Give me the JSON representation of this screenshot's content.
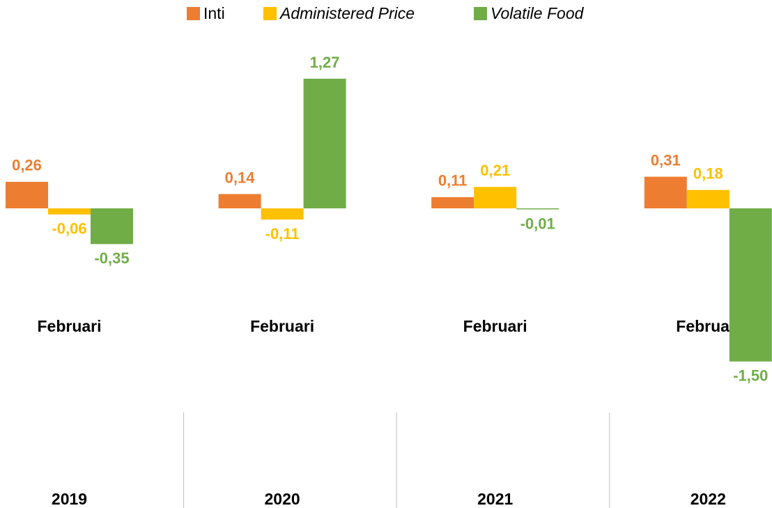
{
  "chart_data": {
    "type": "bar",
    "categories": [
      [
        "Februari",
        "2019"
      ],
      [
        "Februari",
        "2020"
      ],
      [
        "Februari",
        "2021"
      ],
      [
        "Februari",
        "2022"
      ]
    ],
    "series": [
      {
        "name": "Inti",
        "color": "#ED7D31",
        "values": [
          0.26,
          0.14,
          0.11,
          0.31
        ],
        "value_labels": [
          "0,26",
          "0,14",
          "0,11",
          "0,31"
        ]
      },
      {
        "name": "Administered Price",
        "color": "#FFC000",
        "values": [
          -0.06,
          -0.11,
          0.21,
          0.18
        ],
        "value_labels": [
          "-0,06",
          "-0,11",
          "0,21",
          "0,18"
        ]
      },
      {
        "name": "Volatile Food",
        "color": "#70AD47",
        "values": [
          -0.35,
          1.27,
          -0.01,
          -1.5
        ],
        "value_labels": [
          "-0,35",
          "1,27",
          "-0,01",
          "-1,50"
        ]
      }
    ]
  }
}
